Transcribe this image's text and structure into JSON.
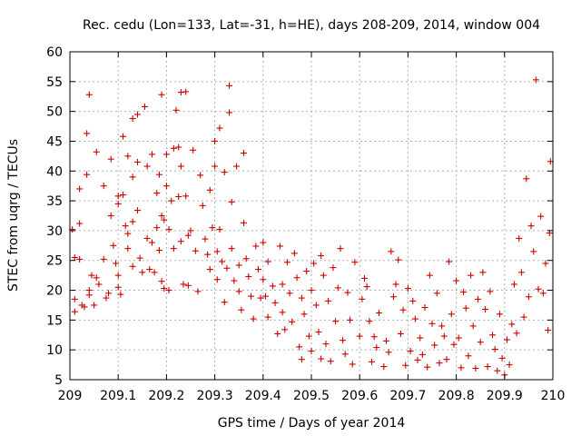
{
  "chart_data": {
    "type": "scatter",
    "title": "Rec. cedu (Lon=133, Lat=-31, h=HE), days 208-209, 2014, window 004",
    "xlabel": "GPS time / Days of year 2014",
    "ylabel": "STEC from uqrg / TECUs",
    "xlim": [
      209,
      210
    ],
    "ylim": [
      5,
      60
    ],
    "xticks": [
      209,
      209.1,
      209.2,
      209.3,
      209.4,
      209.5,
      209.6,
      209.7,
      209.8,
      209.9,
      210
    ],
    "xtick_labels": [
      "209",
      "209.1",
      "209.2",
      "209.3",
      "209.4",
      "209.5",
      "209.6",
      "209.7",
      "209.8",
      "209.9",
      "210"
    ],
    "yticks": [
      5,
      10,
      15,
      20,
      25,
      30,
      35,
      40,
      45,
      50,
      55,
      60
    ],
    "ytick_labels": [
      "5",
      "10",
      "15",
      "20",
      "25",
      "30",
      "35",
      "40",
      "45",
      "50",
      "55",
      "60"
    ],
    "grid": true,
    "marker": "+",
    "color": "#cc0000",
    "series": [
      {
        "name": "STEC",
        "points": [
          [
            209.005,
            30.2
          ],
          [
            209.01,
            25.5
          ],
          [
            209.01,
            18.5
          ],
          [
            209.01,
            16.4
          ],
          [
            209.02,
            31.2
          ],
          [
            209.02,
            37.0
          ],
          [
            209.02,
            25.2
          ],
          [
            209.025,
            17.5
          ],
          [
            209.03,
            17.2
          ],
          [
            209.035,
            46.3
          ],
          [
            209.035,
            39.4
          ],
          [
            209.04,
            52.8
          ],
          [
            209.04,
            20.0
          ],
          [
            209.04,
            19.2
          ],
          [
            209.045,
            22.5
          ],
          [
            209.05,
            17.5
          ],
          [
            209.055,
            43.2
          ],
          [
            209.055,
            22.1
          ],
          [
            209.06,
            21.0
          ],
          [
            209.07,
            37.5
          ],
          [
            209.07,
            25.2
          ],
          [
            209.075,
            18.7
          ],
          [
            209.08,
            19.5
          ],
          [
            209.085,
            42.0
          ],
          [
            209.085,
            32.5
          ],
          [
            209.09,
            27.5
          ],
          [
            209.095,
            24.5
          ],
          [
            209.1,
            35.8
          ],
          [
            209.1,
            34.5
          ],
          [
            209.1,
            22.5
          ],
          [
            209.1,
            20.5
          ],
          [
            209.105,
            19.3
          ],
          [
            209.11,
            45.8
          ],
          [
            209.11,
            36.0
          ],
          [
            209.115,
            30.8
          ],
          [
            209.12,
            42.5
          ],
          [
            209.12,
            29.5
          ],
          [
            209.12,
            27.0
          ],
          [
            209.13,
            48.8
          ],
          [
            209.13,
            39.0
          ],
          [
            209.13,
            31.5
          ],
          [
            209.13,
            24.0
          ],
          [
            209.14,
            49.5
          ],
          [
            209.14,
            41.5
          ],
          [
            209.14,
            33.4
          ],
          [
            209.145,
            25.4
          ],
          [
            209.15,
            23.0
          ],
          [
            209.155,
            50.8
          ],
          [
            209.16,
            40.8
          ],
          [
            209.16,
            28.7
          ],
          [
            209.165,
            23.5
          ],
          [
            209.17,
            42.8
          ],
          [
            209.17,
            28.0
          ],
          [
            209.175,
            23.0
          ],
          [
            209.18,
            36.3
          ],
          [
            209.18,
            30.5
          ],
          [
            209.185,
            39.4
          ],
          [
            209.185,
            26.7
          ],
          [
            209.19,
            52.8
          ],
          [
            209.19,
            32.5
          ],
          [
            209.19,
            21.5
          ],
          [
            209.195,
            31.8
          ],
          [
            209.195,
            20.3
          ],
          [
            209.2,
            42.8
          ],
          [
            209.2,
            37.5
          ],
          [
            209.205,
            30.2
          ],
          [
            209.205,
            20.0
          ],
          [
            209.21,
            35.0
          ],
          [
            209.215,
            43.8
          ],
          [
            209.215,
            27.0
          ],
          [
            209.22,
            50.2
          ],
          [
            209.225,
            44.0
          ],
          [
            209.225,
            35.7
          ],
          [
            209.23,
            53.2
          ],
          [
            209.23,
            40.8
          ],
          [
            209.23,
            28.2
          ],
          [
            209.235,
            21.0
          ],
          [
            209.24,
            53.3
          ],
          [
            209.24,
            35.8
          ],
          [
            209.245,
            29.2
          ],
          [
            209.245,
            20.8
          ],
          [
            209.25,
            30.0
          ],
          [
            209.255,
            43.5
          ],
          [
            209.26,
            26.6
          ],
          [
            209.265,
            19.8
          ],
          [
            209.27,
            39.3
          ],
          [
            209.275,
            34.2
          ],
          [
            209.28,
            28.6
          ],
          [
            209.285,
            26.0
          ],
          [
            209.29,
            36.8
          ],
          [
            209.29,
            23.5
          ],
          [
            209.295,
            30.5
          ],
          [
            209.3,
            45.0
          ],
          [
            209.3,
            40.8
          ],
          [
            209.305,
            26.5
          ],
          [
            209.305,
            21.8
          ],
          [
            209.31,
            47.2
          ],
          [
            209.31,
            30.2
          ],
          [
            209.315,
            24.8
          ],
          [
            209.32,
            39.8
          ],
          [
            209.32,
            18.0
          ],
          [
            209.325,
            23.7
          ],
          [
            209.33,
            54.3
          ],
          [
            209.33,
            49.8
          ],
          [
            209.335,
            34.8
          ],
          [
            209.335,
            27.0
          ],
          [
            209.34,
            21.6
          ],
          [
            209.345,
            40.8
          ],
          [
            209.35,
            24.2
          ],
          [
            209.35,
            19.8
          ],
          [
            209.355,
            16.7
          ],
          [
            209.36,
            43.0
          ],
          [
            209.36,
            31.3
          ],
          [
            209.365,
            25.3
          ],
          [
            209.37,
            22.3
          ],
          [
            209.375,
            19.0
          ],
          [
            209.38,
            15.2
          ],
          [
            209.385,
            27.4
          ],
          [
            209.39,
            23.5
          ],
          [
            209.395,
            18.7
          ],
          [
            209.4,
            28.0
          ],
          [
            209.4,
            21.8
          ],
          [
            209.405,
            19.0
          ],
          [
            209.41,
            24.8
          ],
          [
            209.41,
            15.5
          ],
          [
            209.42,
            20.7
          ],
          [
            209.425,
            17.9
          ],
          [
            209.43,
            12.7
          ],
          [
            209.435,
            27.4
          ],
          [
            209.44,
            21.0
          ],
          [
            209.44,
            16.3
          ],
          [
            209.445,
            13.4
          ],
          [
            209.45,
            24.7
          ],
          [
            209.455,
            19.5
          ],
          [
            209.46,
            14.7
          ],
          [
            209.465,
            26.2
          ],
          [
            209.47,
            22.1
          ],
          [
            209.475,
            10.5
          ],
          [
            209.48,
            18.7
          ],
          [
            209.48,
            8.4
          ],
          [
            209.485,
            16.0
          ],
          [
            209.49,
            23.2
          ],
          [
            209.495,
            12.3
          ],
          [
            209.5,
            20.0
          ],
          [
            209.5,
            9.8
          ],
          [
            209.505,
            24.5
          ],
          [
            209.51,
            17.5
          ],
          [
            209.515,
            13.0
          ],
          [
            209.52,
            25.8
          ],
          [
            209.52,
            8.5
          ],
          [
            209.525,
            22.5
          ],
          [
            209.53,
            11.0
          ],
          [
            209.535,
            18.2
          ],
          [
            209.54,
            8.1
          ],
          [
            209.545,
            23.8
          ],
          [
            209.55,
            14.8
          ],
          [
            209.555,
            20.4
          ],
          [
            209.56,
            27.0
          ],
          [
            209.565,
            11.6
          ],
          [
            209.57,
            9.3
          ],
          [
            209.575,
            19.6
          ],
          [
            209.58,
            15.0
          ],
          [
            209.585,
            7.6
          ],
          [
            209.59,
            24.7
          ],
          [
            209.6,
            12.3
          ],
          [
            209.605,
            18.5
          ],
          [
            209.61,
            22.0
          ],
          [
            209.615,
            20.6
          ],
          [
            209.62,
            14.8
          ],
          [
            209.625,
            8.0
          ],
          [
            209.63,
            12.2
          ],
          [
            209.635,
            10.4
          ],
          [
            209.64,
            16.2
          ],
          [
            209.65,
            7.2
          ],
          [
            209.655,
            11.5
          ],
          [
            209.66,
            9.6
          ],
          [
            209.665,
            26.5
          ],
          [
            209.67,
            18.9
          ],
          [
            209.675,
            21.0
          ],
          [
            209.68,
            25.1
          ],
          [
            209.685,
            12.7
          ],
          [
            209.69,
            16.7
          ],
          [
            209.695,
            7.4
          ],
          [
            209.7,
            20.3
          ],
          [
            209.705,
            9.8
          ],
          [
            209.71,
            18.2
          ],
          [
            209.715,
            15.2
          ],
          [
            209.72,
            8.3
          ],
          [
            209.725,
            12.0
          ],
          [
            209.73,
            9.2
          ],
          [
            209.735,
            17.1
          ],
          [
            209.74,
            7.1
          ],
          [
            209.745,
            22.5
          ],
          [
            209.75,
            14.4
          ],
          [
            209.755,
            10.8
          ],
          [
            209.76,
            19.5
          ],
          [
            209.765,
            7.8
          ],
          [
            209.77,
            14.0
          ],
          [
            209.775,
            12.3
          ],
          [
            209.78,
            8.4
          ],
          [
            209.785,
            24.8
          ],
          [
            209.79,
            16.0
          ],
          [
            209.795,
            10.9
          ],
          [
            209.8,
            21.6
          ],
          [
            209.805,
            12.0
          ],
          [
            209.81,
            7.0
          ],
          [
            209.815,
            19.7
          ],
          [
            209.82,
            17.0
          ],
          [
            209.825,
            9.0
          ],
          [
            209.83,
            22.5
          ],
          [
            209.835,
            14.0
          ],
          [
            209.84,
            6.9
          ],
          [
            209.845,
            18.5
          ],
          [
            209.85,
            11.3
          ],
          [
            209.855,
            23.0
          ],
          [
            209.86,
            16.8
          ],
          [
            209.865,
            7.2
          ],
          [
            209.87,
            19.8
          ],
          [
            209.875,
            12.5
          ],
          [
            209.88,
            10.1
          ],
          [
            209.885,
            6.5
          ],
          [
            209.89,
            16.0
          ],
          [
            209.895,
            8.6
          ],
          [
            209.9,
            5.8
          ],
          [
            209.905,
            11.7
          ],
          [
            209.91,
            7.5
          ],
          [
            209.915,
            14.3
          ],
          [
            209.92,
            21.0
          ],
          [
            209.925,
            12.8
          ],
          [
            209.93,
            28.7
          ],
          [
            209.935,
            23.0
          ],
          [
            209.94,
            15.5
          ],
          [
            209.945,
            38.7
          ],
          [
            209.95,
            18.9
          ],
          [
            209.955,
            30.8
          ],
          [
            209.96,
            26.5
          ],
          [
            209.965,
            55.3
          ],
          [
            209.97,
            20.2
          ],
          [
            209.975,
            32.4
          ],
          [
            209.98,
            19.5
          ],
          [
            209.985,
            24.5
          ],
          [
            209.99,
            13.3
          ],
          [
            209.993,
            29.6
          ],
          [
            209.995,
            41.6
          ]
        ]
      }
    ]
  }
}
